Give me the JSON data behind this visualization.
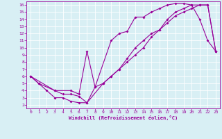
{
  "xlabel": "Windchill (Refroidissement éolien,°C)",
  "bg_color": "#d8eff4",
  "line_color": "#990099",
  "grid_color": "#ffffff",
  "xlim": [
    -0.5,
    23.5
  ],
  "ylim": [
    1.5,
    16.5
  ],
  "xticks": [
    0,
    1,
    2,
    3,
    4,
    5,
    6,
    7,
    8,
    9,
    10,
    11,
    12,
    13,
    14,
    15,
    16,
    17,
    18,
    19,
    20,
    21,
    22,
    23
  ],
  "yticks": [
    2,
    3,
    4,
    5,
    6,
    7,
    8,
    9,
    10,
    11,
    12,
    13,
    14,
    15,
    16
  ],
  "line1_x": [
    0,
    1,
    2,
    3,
    4,
    5,
    6,
    7,
    8,
    10,
    11,
    12,
    13,
    14,
    15,
    16,
    17,
    18,
    19,
    20,
    21,
    22,
    23
  ],
  "line1_y": [
    6,
    5,
    4,
    3,
    3,
    2.5,
    2.3,
    2.3,
    4.5,
    11,
    12,
    12.3,
    14.3,
    14.3,
    15,
    15.5,
    16,
    16.2,
    16.2,
    16,
    14,
    11,
    9.5
  ],
  "line2_x": [
    0,
    1,
    3,
    4,
    5,
    6,
    7,
    9,
    10,
    11,
    12,
    13,
    14,
    15,
    16,
    17,
    18,
    19,
    20,
    21,
    22,
    23
  ],
  "line2_y": [
    6,
    5,
    4,
    3.5,
    3.5,
    3.2,
    2.3,
    5,
    6,
    7,
    8,
    9,
    10,
    11.5,
    12.5,
    13.5,
    14.5,
    15,
    15.5,
    16,
    16,
    9.5
  ],
  "line3_x": [
    0,
    3,
    5,
    6,
    7,
    8,
    9,
    10,
    11,
    12,
    13,
    14,
    15,
    16,
    17,
    18,
    19,
    20,
    21,
    22,
    23
  ],
  "line3_y": [
    6,
    4,
    4,
    3.5,
    9.5,
    4.5,
    5,
    6,
    7,
    8.5,
    10,
    11,
    12,
    12.5,
    14,
    15,
    15.5,
    16,
    16,
    16,
    9.5
  ]
}
